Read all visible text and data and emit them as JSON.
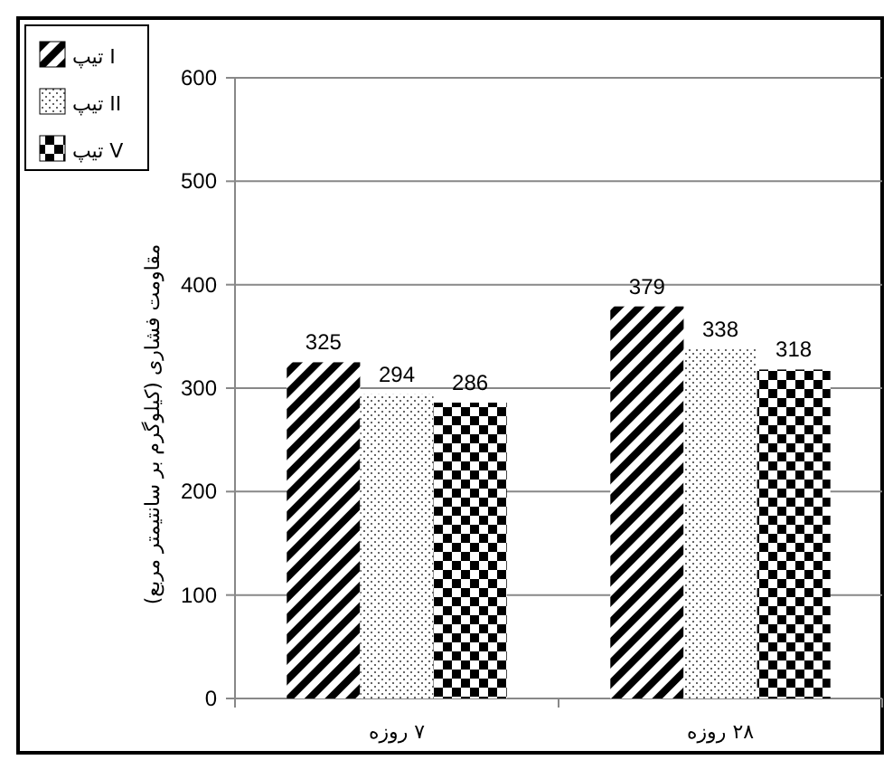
{
  "chart_data": {
    "type": "bar",
    "ylabel": "مقاومت فشاری (کیلوگرم بر سانتیمتر مربع)",
    "categories": [
      "۷ روزه",
      "۲۸ روزه"
    ],
    "series": [
      {
        "name": "تیپ I",
        "color": "#000000",
        "values": [
          325,
          379
        ]
      },
      {
        "name": "تیپ II",
        "color": "#000000",
        "values": [
          294,
          338
        ]
      },
      {
        "name": "تیپ V",
        "color": "#000000",
        "values": [
          286,
          318
        ]
      }
    ],
    "ylim": [
      0,
      600
    ],
    "yticks": [
      0,
      100,
      200,
      300,
      400,
      500,
      600
    ],
    "grid": "y",
    "legend": "top left",
    "data_labels": true
  }
}
